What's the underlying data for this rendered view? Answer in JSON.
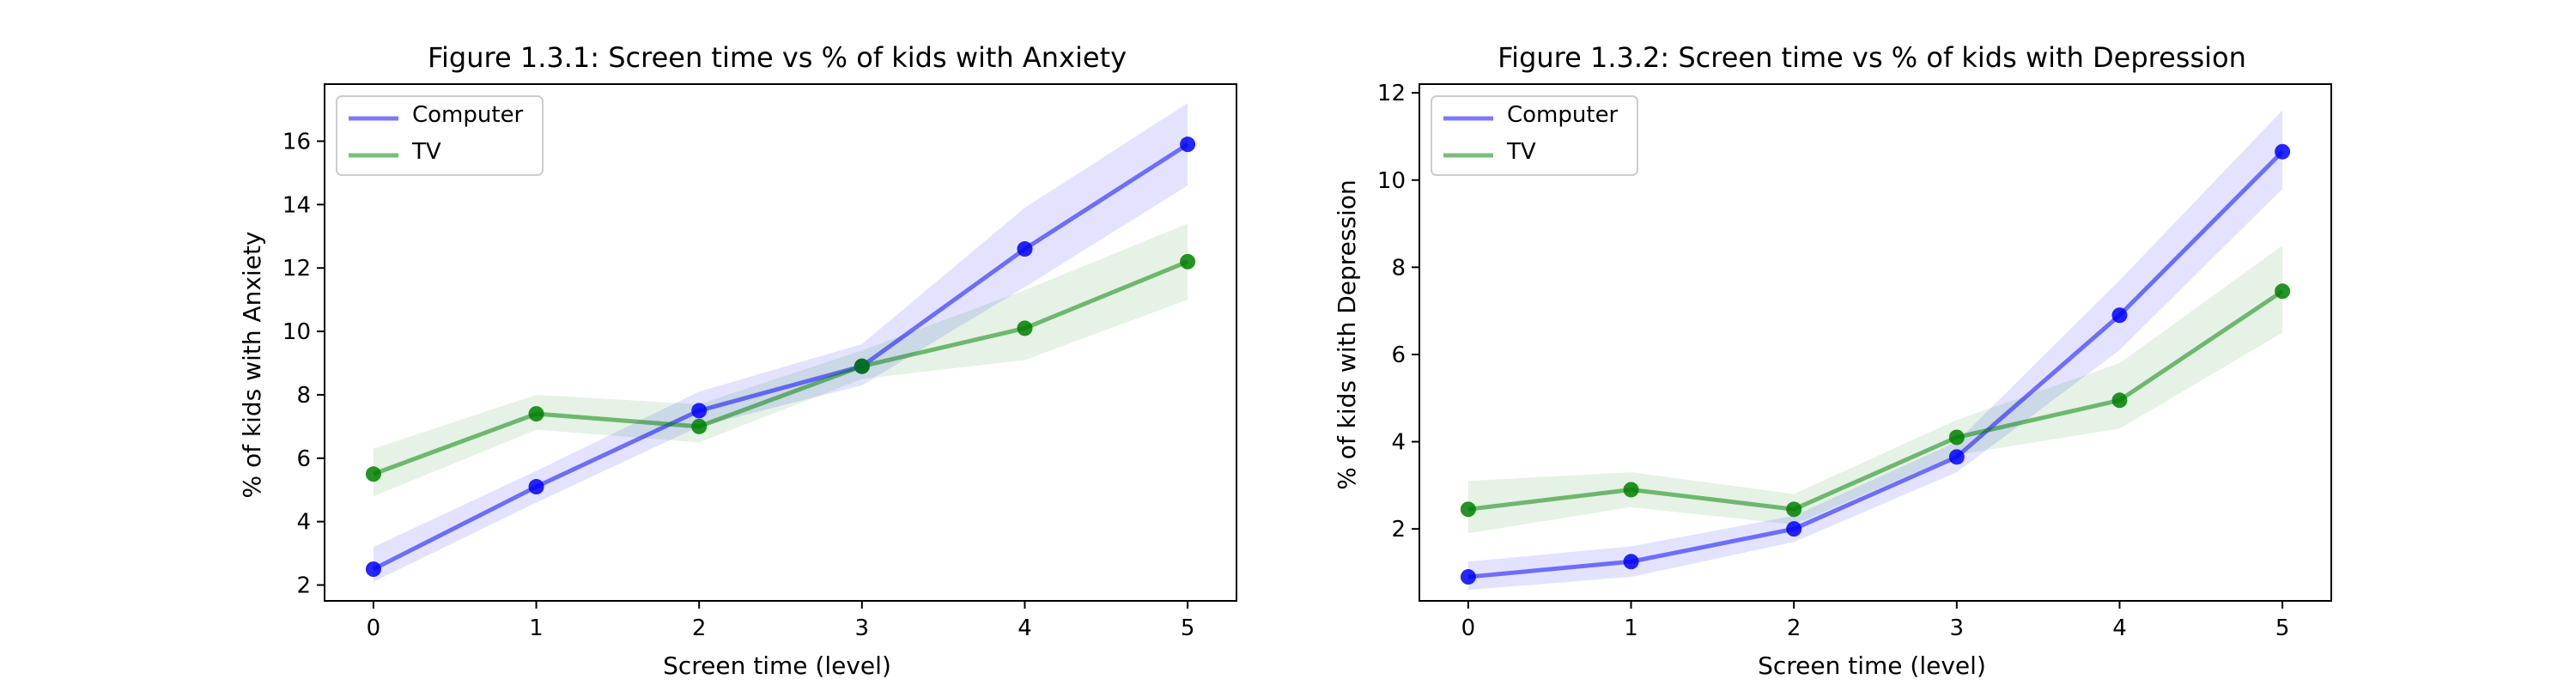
{
  "chart_data": [
    {
      "type": "line",
      "title": "Figure 1.3.1: Screen time vs % of kids with Anxiety",
      "xlabel": "Screen time (level)",
      "ylabel": "% of kids with Anxiety",
      "x": [
        0,
        1,
        2,
        3,
        4,
        5
      ],
      "xlim": [
        -0.3,
        5.3
      ],
      "ylim": [
        1.5,
        17.8
      ],
      "yticks": [
        2,
        4,
        6,
        8,
        10,
        12,
        14,
        16
      ],
      "legend": "upper-left",
      "series": [
        {
          "name": "Computer",
          "color": "#0000ff",
          "values": [
            2.5,
            5.1,
            7.5,
            8.9,
            12.6,
            15.9
          ],
          "ci_low": [
            2.1,
            4.6,
            7.0,
            8.3,
            11.4,
            14.6
          ],
          "ci_high": [
            3.2,
            5.6,
            8.1,
            9.6,
            13.9,
            17.2
          ]
        },
        {
          "name": "TV",
          "color": "#008000",
          "values": [
            5.5,
            7.4,
            7.0,
            8.9,
            10.1,
            12.2
          ],
          "ci_low": [
            4.8,
            6.9,
            6.5,
            8.5,
            9.1,
            11.0
          ],
          "ci_high": [
            6.3,
            8.0,
            7.7,
            9.4,
            11.3,
            13.4
          ]
        }
      ]
    },
    {
      "type": "line",
      "title": "Figure 1.3.2: Screen time vs % of kids with Depression",
      "xlabel": "Screen time (level)",
      "ylabel": "% of kids with Depression",
      "x": [
        0,
        1,
        2,
        3,
        4,
        5
      ],
      "xlim": [
        -0.3,
        5.3
      ],
      "ylim": [
        0.35,
        12.2
      ],
      "yticks": [
        2,
        4,
        6,
        8,
        10,
        12
      ],
      "legend": "upper-left",
      "series": [
        {
          "name": "Computer",
          "color": "#0000ff",
          "values": [
            0.9,
            1.25,
            2.0,
            3.65,
            6.9,
            10.65
          ],
          "ci_low": [
            0.6,
            0.9,
            1.7,
            3.3,
            6.1,
            9.8
          ],
          "ci_high": [
            1.25,
            1.6,
            2.3,
            4.0,
            7.7,
            11.6
          ]
        },
        {
          "name": "TV",
          "color": "#008000",
          "values": [
            2.45,
            2.9,
            2.45,
            4.1,
            4.95,
            7.45
          ],
          "ci_low": [
            1.9,
            2.5,
            2.1,
            3.7,
            4.3,
            6.5
          ],
          "ci_high": [
            3.1,
            3.3,
            2.8,
            4.5,
            5.8,
            8.5
          ]
        }
      ]
    }
  ]
}
